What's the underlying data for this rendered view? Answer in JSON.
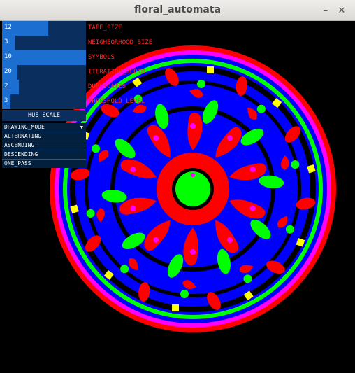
{
  "window": {
    "title": "floral_automata"
  },
  "sliders": [
    {
      "value": "12",
      "label": "TAPE_SIZE",
      "fraction": 0.55
    },
    {
      "value": "3",
      "label": "NEIGHBORHOOD_SIZE",
      "fraction": 0.15
    },
    {
      "value": "10",
      "label": "SYMBOLS",
      "fraction": 1.0
    },
    {
      "value": "20",
      "label": "ITERATION_DEPTH",
      "fraction": 0.18
    },
    {
      "value": "2",
      "label": "DUPLICATES",
      "fraction": 0.2
    },
    {
      "value": "3",
      "label": "THRESHOLD_LEVEL",
      "fraction": 0.1
    }
  ],
  "hue_button": "HUE_SCALE",
  "drawing_mode": {
    "label": "DRAWING_MODE",
    "options": [
      "ALTERNATING",
      "ASCENDING",
      "DESCENDING",
      "ONE_PASS"
    ]
  },
  "colors": {
    "red": "#ff0000",
    "green": "#00ff00",
    "blue": "#0000ff",
    "magenta": "#ff00ff",
    "yellow": "#ffff00"
  }
}
